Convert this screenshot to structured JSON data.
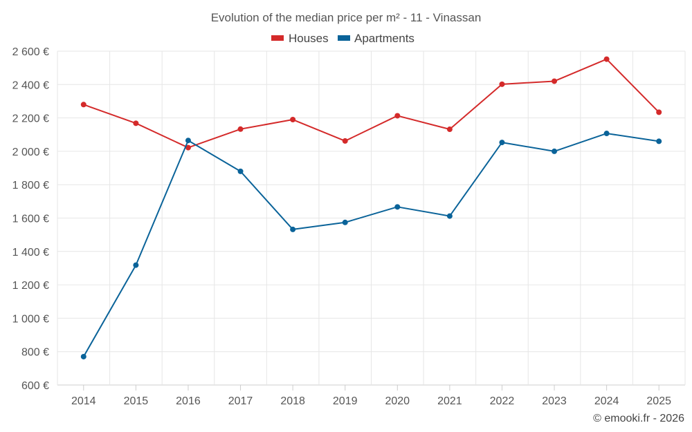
{
  "chart_data": {
    "type": "line",
    "title": "Evolution of the median price per m² - 11 - Vinassan",
    "categories": [
      "2014",
      "2015",
      "2016",
      "2017",
      "2018",
      "2019",
      "2020",
      "2021",
      "2022",
      "2023",
      "2024",
      "2025"
    ],
    "series": [
      {
        "name": "Houses",
        "color": "#d42a2a",
        "values": [
          2280,
          2168,
          2022,
          2133,
          2190,
          2062,
          2213,
          2132,
          2402,
          2420,
          2552,
          2234
        ]
      },
      {
        "name": "Apartments",
        "color": "#0a6399",
        "values": [
          770,
          1318,
          2065,
          1880,
          1532,
          1574,
          1667,
          1612,
          2053,
          2000,
          2107,
          2060
        ]
      }
    ],
    "ylim": [
      600,
      2600
    ],
    "yticks": [
      600,
      800,
      1000,
      1200,
      1400,
      1600,
      1800,
      2000,
      2200,
      2400,
      2600
    ],
    "ytick_labels": [
      "600 €",
      "800 €",
      "1 000 €",
      "1 200 €",
      "1 400 €",
      "1 600 €",
      "1 800 €",
      "2 000 €",
      "2 200 €",
      "2 400 €",
      "2 600 €"
    ],
    "xlabel": "",
    "ylabel": "",
    "grid": true,
    "legend_position": "top-center",
    "credit": "© emooki.fr - 2026"
  }
}
